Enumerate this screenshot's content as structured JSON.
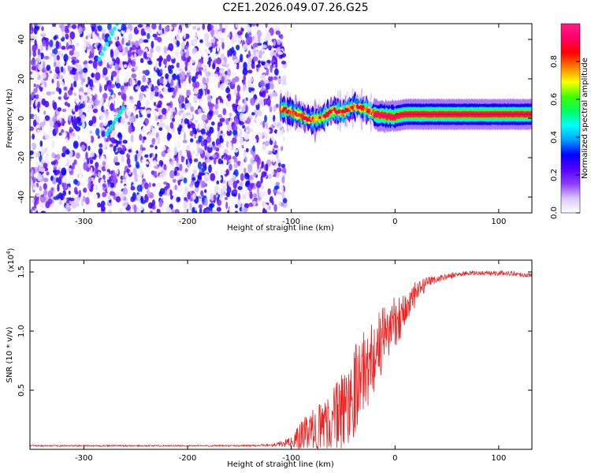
{
  "figure": {
    "title": "C2E1.2026.049.07.26.G25"
  },
  "chart_data": [
    {
      "type": "heatmap",
      "xlabel": "Height of straight line (km)",
      "ylabel": "Frequency (Hz)",
      "xlim": [
        -352,
        132
      ],
      "ylim": [
        -48,
        48
      ],
      "x_ticks": [
        -300,
        -200,
        -100,
        0,
        100
      ],
      "y_ticks": [
        -40,
        -20,
        0,
        20,
        40
      ],
      "colorbar": {
        "label": "Normalized spectral amplitude",
        "range": [
          0,
          1
        ],
        "ticks": [
          0.0,
          0.2,
          0.4,
          0.6,
          0.8
        ],
        "colors": [
          "#ffffff",
          "#d9c6ff",
          "#8c3cff",
          "#5500ff",
          "#0000ff",
          "#00a0ff",
          "#00ffff",
          "#00ff60",
          "#40ff00",
          "#ffff00",
          "#ff8000",
          "#ff0000",
          "#ff0066",
          "#ff1a8c"
        ]
      },
      "noise_region_x": [
        -352,
        -110
      ],
      "ridge": [
        {
          "x": -110,
          "y": 5
        },
        {
          "x": -100,
          "y": 3
        },
        {
          "x": -90,
          "y": 1
        },
        {
          "x": -80,
          "y": -1
        },
        {
          "x": -70,
          "y": 0
        },
        {
          "x": -60,
          "y": 4
        },
        {
          "x": -50,
          "y": 3
        },
        {
          "x": -40,
          "y": 6
        },
        {
          "x": -30,
          "y": 5
        },
        {
          "x": -20,
          "y": 2
        },
        {
          "x": -10,
          "y": 1
        },
        {
          "x": 0,
          "y": 1
        },
        {
          "x": 10,
          "y": 2
        },
        {
          "x": 20,
          "y": 2
        },
        {
          "x": 30,
          "y": 2
        },
        {
          "x": 40,
          "y": 2
        },
        {
          "x": 50,
          "y": 2
        },
        {
          "x": 60,
          "y": 2
        },
        {
          "x": 70,
          "y": 2
        },
        {
          "x": 80,
          "y": 2
        },
        {
          "x": 90,
          "y": 2
        },
        {
          "x": 100,
          "y": 2
        },
        {
          "x": 110,
          "y": 2
        },
        {
          "x": 120,
          "y": 2
        },
        {
          "x": 132,
          "y": 2
        }
      ]
    },
    {
      "type": "line",
      "xlabel": "Height of straight line (km)",
      "ylabel": "SNR (10 * v/v)",
      "y_multiplier": "(x10",
      "y_multiplier_exp": "4",
      "y_multiplier_close": ")",
      "xlim": [
        -352,
        132
      ],
      "ylim": [
        0,
        16000
      ],
      "x_ticks": [
        -300,
        -200,
        -100,
        0,
        100
      ],
      "y_ticks": [
        0.5,
        1.0,
        1.5
      ],
      "y_tick_labels": [
        "0.5",
        "1.0",
        "1.5"
      ],
      "color": "#ee2222",
      "series": [
        {
          "x": [
            -352,
            -300,
            -250,
            -200,
            -150,
            -120,
            -100,
            -90,
            -80,
            -70,
            -60,
            -50,
            -45,
            -40,
            -35,
            -30,
            -25,
            -20,
            -15,
            -10,
            -5,
            0,
            5,
            10,
            15,
            20,
            25,
            30,
            40,
            50,
            60,
            70,
            80,
            90,
            100,
            110,
            120,
            132
          ],
          "y": [
            300,
            300,
            300,
            300,
            300,
            350,
            600,
            1000,
            1500,
            2000,
            2500,
            3300,
            4000,
            5000,
            6000,
            6500,
            7200,
            8000,
            8800,
            9500,
            10400,
            10800,
            11300,
            11800,
            12400,
            13000,
            13600,
            14000,
            14400,
            14600,
            14800,
            14900,
            14900,
            14900,
            14900,
            14900,
            14800,
            14700
          ],
          "noise": [
            60,
            60,
            60,
            60,
            60,
            100,
            400,
            1500,
            1800,
            2200,
            2800,
            3500,
            3800,
            4000,
            3800,
            3500,
            3400,
            3200,
            3000,
            2800,
            2500,
            2200,
            2000,
            1800,
            1500,
            1200,
            800,
            500,
            300,
            250,
            200,
            200,
            200,
            200,
            200,
            200,
            200,
            200
          ]
        }
      ]
    }
  ]
}
